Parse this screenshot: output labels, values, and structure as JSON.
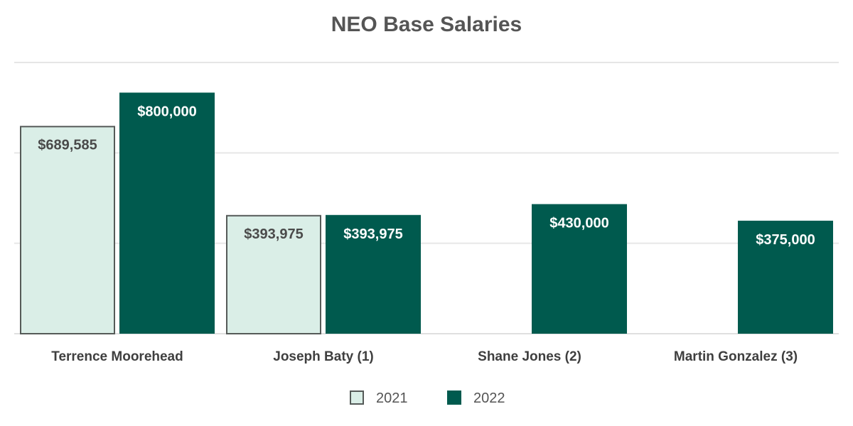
{
  "chart_data": {
    "type": "bar",
    "title": "NEO Base Salaries",
    "xlabel": "",
    "ylabel": "",
    "categories": [
      "Terrence Moorehead",
      "Joseph Baty (1)",
      "Shane Jones (2)",
      "Martin Gonzalez (3)"
    ],
    "series": [
      {
        "name": "2021",
        "color": "#daeee7",
        "border": "#555a58",
        "label_color": "#4a4a4a",
        "values": [
          689585,
          393975,
          null,
          null
        ],
        "labels": [
          "$689,585",
          "$393,975",
          "",
          ""
        ]
      },
      {
        "name": "2022",
        "color": "#005a4e",
        "border": "#005a4e",
        "label_color": "#ffffff",
        "values": [
          800000,
          393975,
          430000,
          375000
        ],
        "labels": [
          "$800,000",
          "$393,975",
          "$430,000",
          "$375,000"
        ]
      }
    ],
    "ylim": [
      0,
      900000
    ],
    "grid": true,
    "legend_position": "bottom"
  }
}
